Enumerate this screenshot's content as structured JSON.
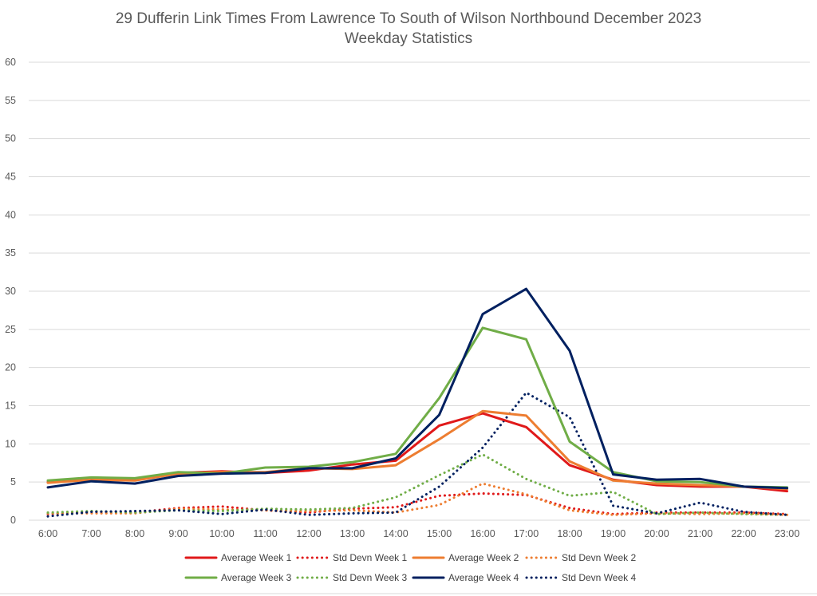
{
  "chart_data": {
    "type": "line",
    "title": "29 Dufferin Link Times From Lawrence To South of Wilson Northbound December 2023",
    "subtitle": "Weekday Statistics",
    "xlabel": "",
    "ylabel": "",
    "ylim": [
      0,
      60
    ],
    "yticks": [
      0,
      5,
      10,
      15,
      20,
      25,
      30,
      35,
      40,
      45,
      50,
      55,
      60
    ],
    "grid": true,
    "legend_position": "bottom",
    "categories": [
      "6:00",
      "7:00",
      "8:00",
      "9:00",
      "10:00",
      "11:00",
      "12:00",
      "13:00",
      "14:00",
      "15:00",
      "16:00",
      "17:00",
      "18:00",
      "19:00",
      "20:00",
      "21:00",
      "22:00",
      "23:00"
    ],
    "series": [
      {
        "name": "Average Week 1",
        "color": "#e0191a",
        "style": "solid",
        "values": [
          5.0,
          5.4,
          5.3,
          6.2,
          6.4,
          6.2,
          6.5,
          7.3,
          7.8,
          12.4,
          14.0,
          12.2,
          7.2,
          5.3,
          4.6,
          4.4,
          4.4,
          3.8
        ]
      },
      {
        "name": "Std Devn Week 1",
        "color": "#e0191a",
        "style": "dotted",
        "values": [
          0.8,
          1.1,
          1.0,
          1.6,
          1.8,
          1.3,
          1.0,
          1.5,
          1.7,
          3.2,
          3.5,
          3.3,
          1.6,
          0.8,
          1.0,
          1.0,
          1.0,
          0.8
        ]
      },
      {
        "name": "Average Week 2",
        "color": "#ed7d31",
        "style": "solid",
        "values": [
          4.9,
          5.3,
          5.2,
          6.1,
          6.3,
          6.3,
          6.8,
          6.7,
          7.2,
          10.6,
          14.3,
          13.7,
          7.7,
          5.2,
          4.8,
          4.6,
          4.4,
          4.1
        ]
      },
      {
        "name": "Std Devn Week 2",
        "color": "#ed7d31",
        "style": "dotted",
        "values": [
          0.9,
          0.9,
          0.9,
          1.5,
          1.4,
          1.3,
          1.2,
          1.3,
          1.0,
          2.0,
          4.8,
          3.4,
          1.3,
          0.7,
          0.9,
          0.8,
          0.9,
          0.7
        ]
      },
      {
        "name": "Average Week 3",
        "color": "#70ad47",
        "style": "solid",
        "values": [
          5.2,
          5.6,
          5.5,
          6.3,
          6.1,
          6.9,
          7.0,
          7.6,
          8.7,
          16.0,
          25.2,
          23.7,
          10.3,
          6.3,
          5.1,
          5.0,
          4.4,
          4.3
        ]
      },
      {
        "name": "Std Devn Week 3",
        "color": "#70ad47",
        "style": "dotted",
        "values": [
          1.0,
          1.2,
          1.0,
          1.3,
          1.2,
          1.5,
          1.4,
          1.6,
          3.0,
          5.9,
          8.6,
          5.4,
          3.2,
          3.7,
          0.8,
          1.0,
          0.8,
          0.7
        ]
      },
      {
        "name": "Average Week 4",
        "color": "#002060",
        "style": "solid",
        "values": [
          4.3,
          5.1,
          4.8,
          5.8,
          6.1,
          6.2,
          6.8,
          6.8,
          8.1,
          13.8,
          27.0,
          30.3,
          22.2,
          6.0,
          5.3,
          5.4,
          4.4,
          4.2
        ]
      },
      {
        "name": "Std Devn Week 4",
        "color": "#002060",
        "style": "dotted",
        "values": [
          0.5,
          1.1,
          1.2,
          1.3,
          0.8,
          1.4,
          0.7,
          0.9,
          1.0,
          4.4,
          9.5,
          16.7,
          13.5,
          1.9,
          0.9,
          2.3,
          1.1,
          0.7
        ]
      }
    ]
  }
}
